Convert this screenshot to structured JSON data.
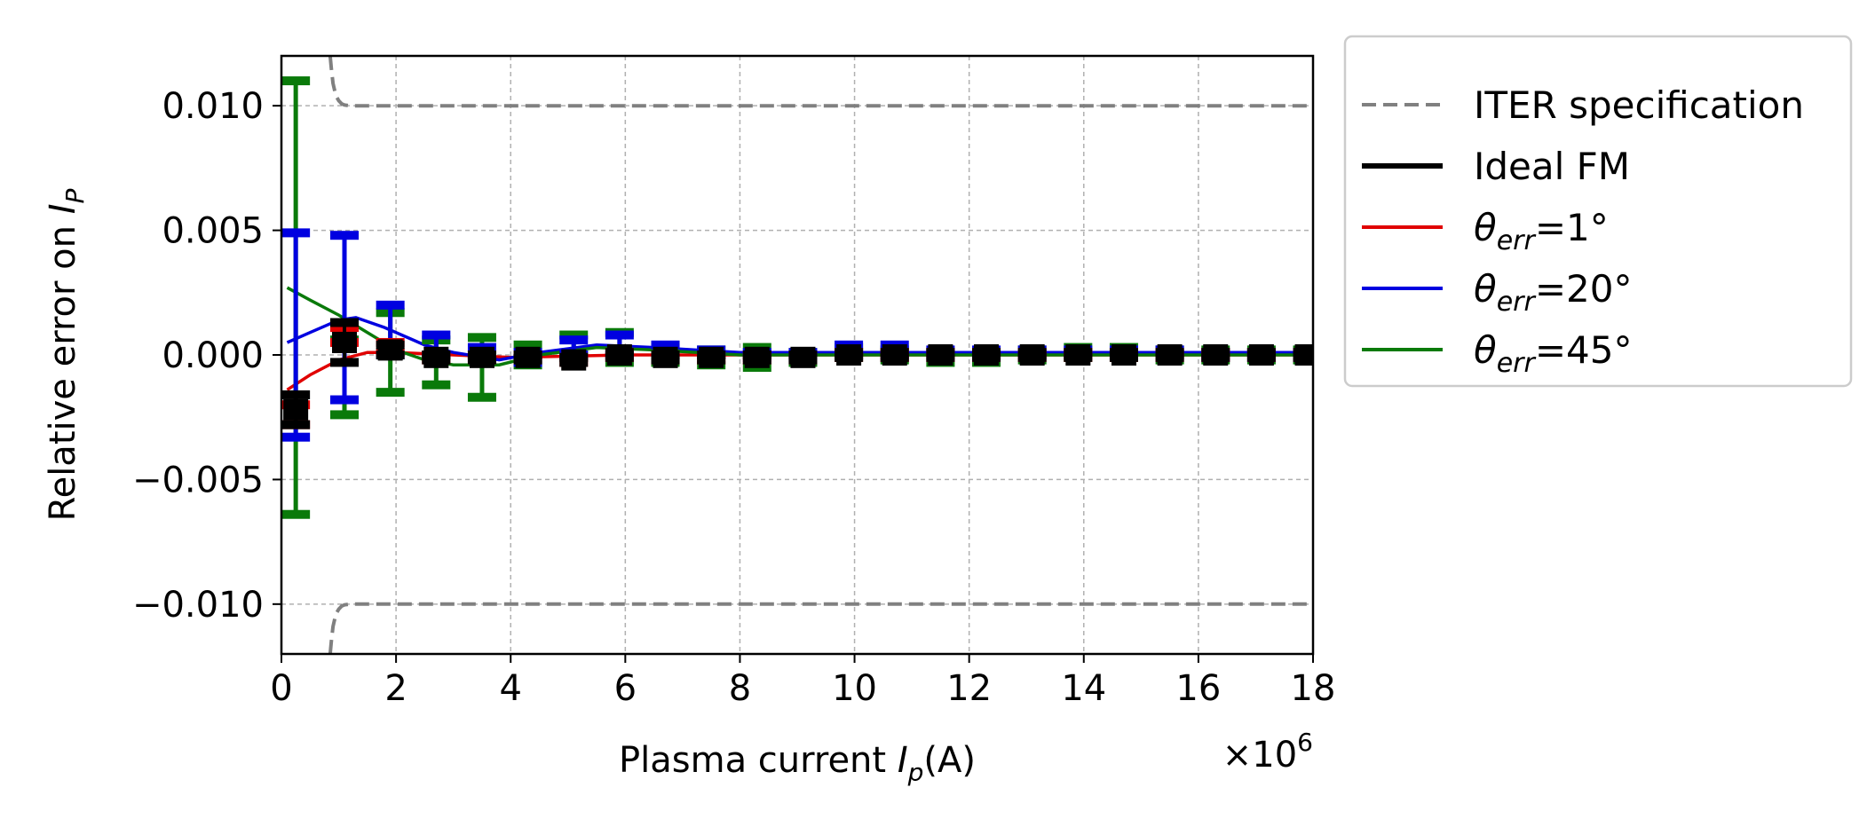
{
  "chart_data": {
    "type": "line",
    "xlabel": "Plasma current I_p(A)",
    "xlabel_parts": {
      "pre": "Plasma current ",
      "var": "I",
      "sub": "p",
      "post": "(A)"
    },
    "ylabel": "Relative error on I_P",
    "ylabel_parts": {
      "pre": "Relative error on ",
      "var": "I",
      "sub": "P"
    },
    "x_multiplier": "×10^6",
    "x_multiplier_parts": {
      "base": "×10",
      "exp": "6"
    },
    "xlim": [
      0,
      18
    ],
    "ylim": [
      -0.012,
      0.012
    ],
    "x_ticks": [
      0,
      2,
      4,
      6,
      8,
      10,
      12,
      14,
      16,
      18
    ],
    "x_tick_labels": [
      "0",
      "2",
      "4",
      "6",
      "8",
      "10",
      "12",
      "14",
      "16",
      "18"
    ],
    "y_ticks": [
      0.01,
      0.005,
      0.0,
      -0.005,
      -0.01
    ],
    "y_tick_labels": [
      "0.010",
      "0.005",
      "0.000",
      "−0.005",
      "−0.010"
    ],
    "grid": true,
    "legend_position": "outside-right",
    "x_units_scale": 1000000,
    "spec_curve": {
      "name": "ITER specification",
      "color": "#808080",
      "x": [
        0.85,
        0.87,
        0.9,
        0.95,
        1.0,
        1.05,
        1.1,
        1.2,
        18
      ],
      "upper": [
        0.012,
        0.0115,
        0.0109,
        0.0104,
        0.0102,
        0.01008,
        0.01003,
        0.01,
        0.01
      ],
      "lower": [
        -0.012,
        -0.0115,
        -0.0109,
        -0.0104,
        -0.0102,
        -0.01008,
        -0.01003,
        -0.01,
        -0.01
      ]
    },
    "series": [
      {
        "name": "Ideal FM",
        "color": "#000000",
        "x": [
          0.25,
          1.1,
          1.9,
          2.7,
          3.5,
          4.3,
          5.1,
          5.9,
          6.7,
          7.5,
          8.3,
          9.1,
          9.9,
          10.7,
          11.5,
          12.3,
          13.1,
          13.9,
          14.7,
          15.5,
          16.3,
          17.1,
          17.9
        ],
        "y": [
          -0.0022,
          0.0005,
          0.0002,
          -0.0001,
          -0.0001,
          -0.0001,
          -0.0002,
          0.0,
          -0.0001,
          -0.0001,
          -0.0001,
          -0.0001,
          0.0,
          0.0,
          0.0,
          0.0,
          0.0,
          0.0,
          0.0,
          0.0,
          0.0,
          0.0,
          0.0
        ],
        "err": [
          0.0006,
          0.0008,
          0.0002,
          0.0001,
          0.0001,
          0.0001,
          0.0001,
          0.0001,
          0.0001,
          0.0001,
          0.0001,
          0.0001,
          0.0001,
          0.0001,
          0.0001,
          0.0001,
          0.0001,
          0.0001,
          0.0001,
          0.0001,
          0.0001,
          0.0001,
          0.0001
        ]
      },
      {
        "name": "θ_err=1°",
        "color": "#e00000",
        "x": [
          0.25,
          1.1,
          1.9,
          2.7,
          3.5,
          4.3,
          5.1,
          5.9,
          6.7,
          7.5,
          8.3,
          9.1,
          9.9,
          10.7,
          11.5,
          12.3,
          13.1,
          13.9,
          14.7,
          15.5,
          16.3,
          17.1,
          17.9
        ],
        "y": [
          -0.0024,
          0.0008,
          0.0003,
          -0.0001,
          -0.0001,
          -0.0001,
          -0.0002,
          0.0,
          -0.0001,
          -0.0001,
          -0.0001,
          -0.0001,
          0.0,
          0.0,
          0.0,
          0.0,
          0.0,
          0.0,
          0.0,
          0.0,
          0.0,
          0.0,
          0.0
        ],
        "err": [
          0.0004,
          0.0003,
          0.0002,
          0.0001,
          0.0001,
          0.0001,
          0.0001,
          0.0001,
          0.0001,
          0.0001,
          0.0001,
          0.0001,
          0.0001,
          0.0001,
          0.0001,
          0.0001,
          0.0001,
          0.0001,
          0.0001,
          0.0001,
          0.0001,
          0.0001,
          0.0001
        ],
        "fit": [
          [
            0.1,
            -0.0014
          ],
          [
            0.5,
            -0.0008
          ],
          [
            1.0,
            -0.0002
          ],
          [
            1.5,
            0.0001
          ],
          [
            2.0,
            0.0001
          ],
          [
            3.0,
            0.0
          ],
          [
            4.0,
            -0.0001
          ],
          [
            6.0,
            0.0
          ],
          [
            18,
            0.0
          ]
        ]
      },
      {
        "name": "θ_err=20°",
        "color": "#0000e0",
        "x": [
          0.25,
          1.1,
          1.9,
          2.7,
          3.5,
          4.3,
          5.1,
          5.9,
          6.7,
          7.5,
          8.3,
          9.1,
          9.9,
          10.7,
          11.5,
          12.3,
          13.1,
          13.9,
          14.7,
          15.5,
          16.3,
          17.1,
          17.9
        ],
        "y": [
          0.0008,
          0.0015,
          0.001,
          0.0004,
          0.0001,
          -0.0001,
          0.0003,
          0.0004,
          0.0002,
          0.0001,
          0.0,
          0.0,
          0.0002,
          0.0002,
          0.0001,
          0.0001,
          0.0001,
          0.0001,
          0.0001,
          0.0001,
          0.0,
          0.0,
          0.0
        ],
        "err": [
          0.0041,
          0.0033,
          0.001,
          0.0004,
          0.0002,
          0.0002,
          0.0003,
          0.0004,
          0.0002,
          0.0001,
          0.0001,
          0.0001,
          0.0002,
          0.0002,
          0.0001,
          0.0001,
          0.0001,
          0.0001,
          0.0001,
          0.0001,
          0.0001,
          0.0001,
          0.0001
        ],
        "fit": [
          [
            0.1,
            0.0005
          ],
          [
            0.5,
            0.0009
          ],
          [
            1.0,
            0.0014
          ],
          [
            1.3,
            0.0015
          ],
          [
            1.8,
            0.0011
          ],
          [
            2.5,
            0.0004
          ],
          [
            3.0,
            0.0001
          ],
          [
            3.8,
            -0.0002
          ],
          [
            4.5,
            0.0001
          ],
          [
            5.5,
            0.0004
          ],
          [
            6.5,
            0.0003
          ],
          [
            8.0,
            0.0001
          ],
          [
            10.0,
            0.0001
          ],
          [
            14.0,
            0.0001
          ],
          [
            18,
            0.0001
          ]
        ]
      },
      {
        "name": "θ_err=45°",
        "color": "#0a7a0a",
        "x": [
          0.25,
          1.1,
          1.9,
          2.7,
          3.5,
          4.3,
          5.1,
          5.9,
          6.7,
          7.5,
          8.3,
          9.1,
          9.9,
          10.7,
          11.5,
          12.3,
          13.1,
          13.9,
          14.7,
          15.5,
          16.3,
          17.1,
          17.9
        ],
        "y": [
          0.0023,
          -0.0009,
          0.0001,
          -0.0003,
          -0.0005,
          0.0,
          0.0004,
          0.0003,
          0.0,
          -0.0001,
          -0.0001,
          -0.0001,
          0.0001,
          0.0,
          -0.0001,
          -0.0001,
          0.0,
          0.0001,
          0.0001,
          0.0,
          0.0,
          0.0,
          0.0
        ],
        "err": [
          0.0087,
          0.0015,
          0.0016,
          0.0009,
          0.0012,
          0.0004,
          0.0004,
          0.0006,
          0.0003,
          0.0003,
          0.0004,
          0.0002,
          0.0002,
          0.0002,
          0.0002,
          0.0002,
          0.0002,
          0.0002,
          0.0002,
          0.0002,
          0.0002,
          0.0002,
          0.0002
        ],
        "fit": [
          [
            0.1,
            0.0027
          ],
          [
            0.5,
            0.0022
          ],
          [
            1.0,
            0.0016
          ],
          [
            1.5,
            0.0009
          ],
          [
            2.0,
            0.0002
          ],
          [
            2.5,
            -0.0002
          ],
          [
            3.0,
            -0.0004
          ],
          [
            3.8,
            -0.0004
          ],
          [
            4.5,
            0.0
          ],
          [
            5.5,
            0.0003
          ],
          [
            6.5,
            0.0002
          ],
          [
            8.0,
            0.0
          ],
          [
            10.0,
            0.0
          ],
          [
            14.0,
            0.0
          ],
          [
            18,
            0.0
          ]
        ]
      }
    ]
  }
}
